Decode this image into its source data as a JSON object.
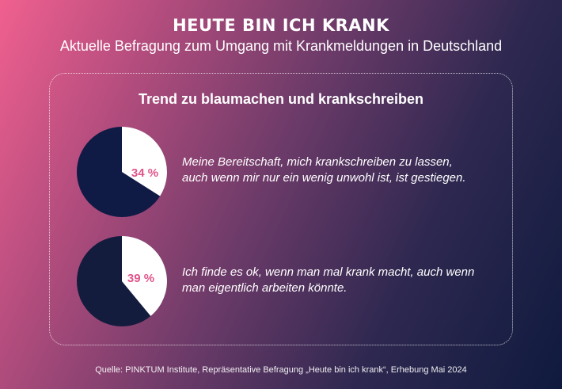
{
  "title": "HEUTE BIN ICH KRANK",
  "subtitle": "Aktuelle Befragung zum Umgang mit Krankmeldungen in Deutschland",
  "panel_title": "Trend zu blaumachen und krankschreiben",
  "source": "Quelle: PINKTUM Institute, Repräsentative Befragung „Heute bin ich krank“, Erhebung Mai 2024",
  "colors": {
    "pie_dark_1": "#0f1a45",
    "pie_dark_2": "#141c3e",
    "pie_light": "#ffffff",
    "percent_label": "#e0548a"
  },
  "chart_data": [
    {
      "type": "pie",
      "value": 34,
      "label": "34 %",
      "statement_line1": "Meine Bereitschaft, mich krankschreiben zu lassen,",
      "statement_line2": "auch wenn mir nur ein wenig unwohl ist, ist gestiegen."
    },
    {
      "type": "pie",
      "value": 39,
      "label": "39 %",
      "statement_line1": "Ich finde es ok, wenn man mal krank macht, auch wenn",
      "statement_line2": "man eigentlich arbeiten könnte."
    }
  ]
}
